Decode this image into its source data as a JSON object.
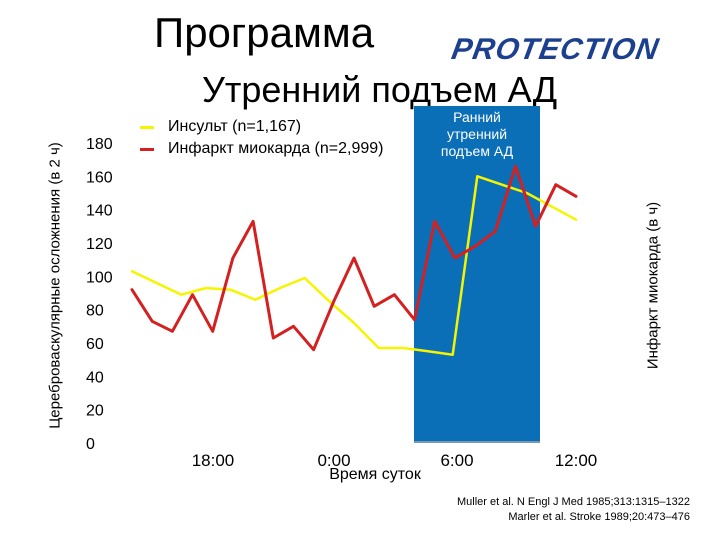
{
  "slide": {
    "title": "Программа",
    "logo_text": "PROTECTION",
    "subtitle": "Утренний подъем АД",
    "citation_1": "Muller et al. N Engl J Med 1985;313:1315–1322",
    "citation_2": "Marler et al. Stroke 1989;20:473–476"
  },
  "chart_data": {
    "type": "line",
    "ylabel_left": "Цереброваскулярные осложнения (в 2 ч)",
    "ylabel_right": "Инфаркт миокарда (в ч)",
    "xlabel": "Время суток",
    "yticks": [
      "180",
      "160",
      "140",
      "120",
      "100",
      "80",
      "60",
      "40",
      "20",
      "0"
    ],
    "xticks": [
      "18:00",
      "0:00",
      "6:00",
      "12:00"
    ],
    "highlight_band": {
      "label_lines": [
        "Ранний",
        "утренний",
        "подъем АД"
      ],
      "color": "#0b6fb8"
    },
    "series": [
      {
        "name": "Инсульт (n=1,167)",
        "color": "#f5f500",
        "values": [
          103,
          96,
          89,
          93,
          92,
          86,
          93,
          99,
          85,
          72,
          57,
          57,
          55,
          53,
          160,
          155,
          150,
          142,
          134
        ]
      },
      {
        "name": "Инфаркт миокарда (n=2,999)",
        "color": "#d42020",
        "values": [
          92,
          73,
          67,
          89,
          67,
          111,
          133,
          63,
          70,
          56,
          85,
          111,
          82,
          89,
          74,
          133,
          111,
          118,
          127,
          166,
          130,
          155,
          148
        ]
      }
    ]
  }
}
